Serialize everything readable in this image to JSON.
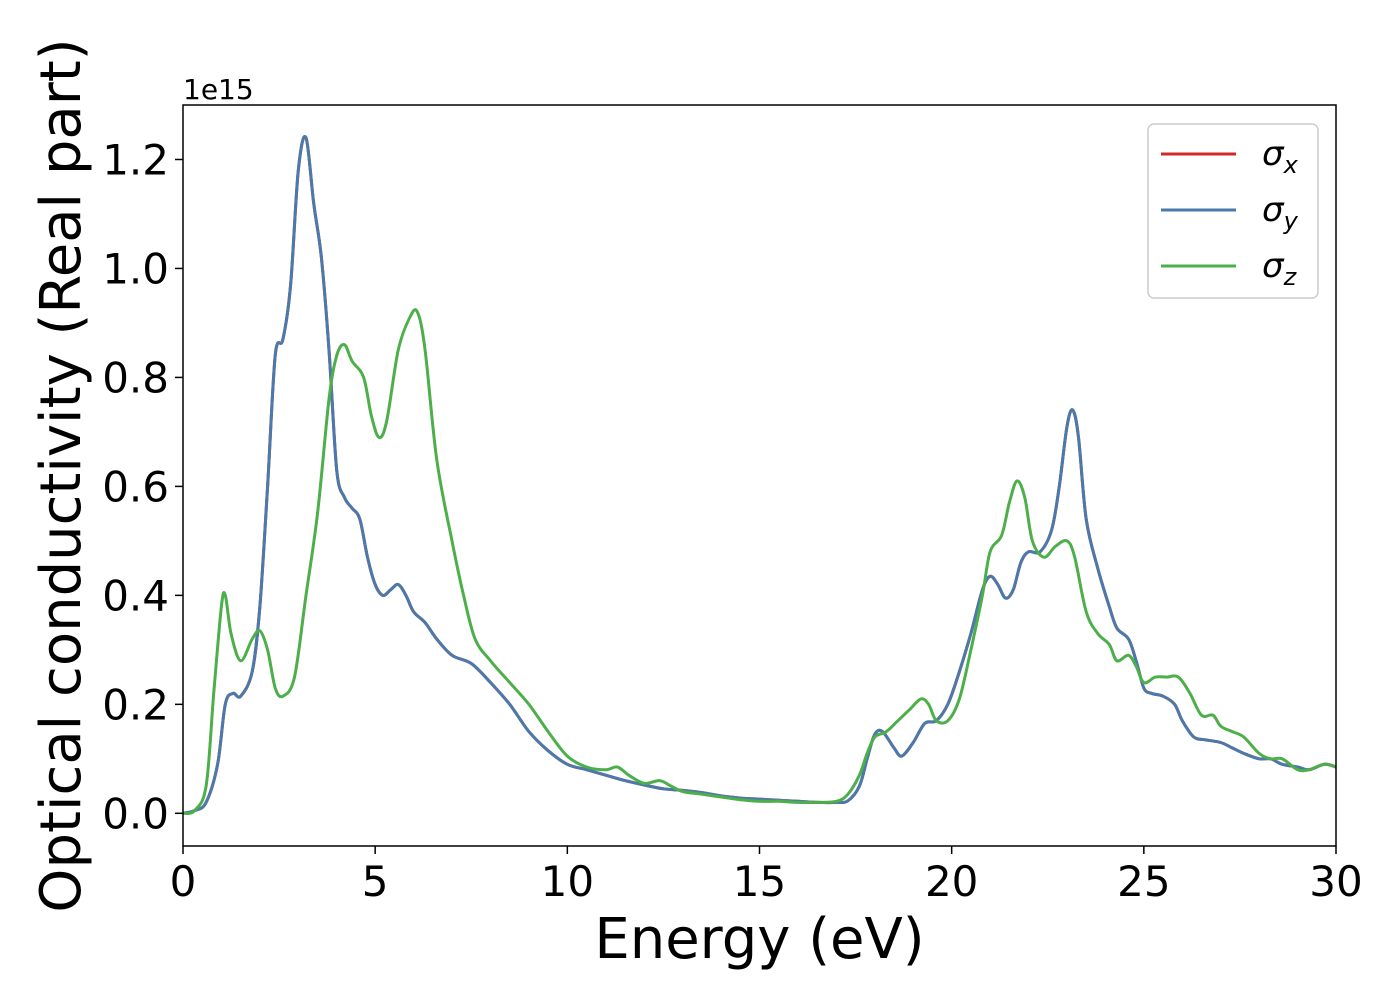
{
  "chart_data": {
    "type": "line",
    "xlabel": "Energy (eV)",
    "ylabel": "Optical conductivity (Real part)",
    "y_offset_label": "1e15",
    "xlim": [
      0,
      30
    ],
    "ylim": [
      -0.06,
      1.3
    ],
    "x_ticks": [
      0,
      5,
      10,
      15,
      20,
      25,
      30
    ],
    "x_tick_labels": [
      "0",
      "5",
      "10",
      "15",
      "20",
      "25",
      "30"
    ],
    "y_ticks": [
      0.0,
      0.2,
      0.4,
      0.6,
      0.8,
      1.0,
      1.2
    ],
    "y_tick_labels": [
      "0.0",
      "0.2",
      "0.4",
      "0.6",
      "0.8",
      "1.0",
      "1.2"
    ],
    "grid": false,
    "legend_position": "top-right",
    "series": [
      {
        "name": "σx",
        "label_base": "σ",
        "label_sub": "x",
        "color": "#d62728",
        "x": [
          0,
          0.3,
          0.6,
          0.9,
          1.1,
          1.3,
          1.5,
          1.8,
          2.0,
          2.2,
          2.4,
          2.6,
          2.8,
          3.0,
          3.2,
          3.4,
          3.6,
          3.8,
          4.0,
          4.2,
          4.4,
          4.6,
          4.8,
          5.0,
          5.2,
          5.4,
          5.6,
          5.8,
          6.0,
          6.3,
          6.6,
          7.0,
          7.5,
          8.0,
          8.5,
          9.0,
          9.5,
          10.0,
          10.5,
          11.0,
          11.5,
          12.0,
          12.5,
          13.0,
          13.5,
          14.0,
          14.5,
          15.0,
          15.5,
          16.0,
          16.5,
          17.0,
          17.3,
          17.6,
          17.8,
          18.0,
          18.2,
          18.5,
          18.7,
          19.0,
          19.3,
          19.6,
          19.9,
          20.2,
          20.5,
          20.8,
          21.0,
          21.2,
          21.4,
          21.6,
          21.8,
          22.0,
          22.3,
          22.6,
          22.8,
          23.0,
          23.15,
          23.3,
          23.5,
          23.8,
          24.1,
          24.3,
          24.6,
          24.8,
          25.0,
          25.2,
          25.5,
          25.8,
          26.0,
          26.3,
          26.6,
          27.0,
          27.3,
          27.6,
          28.0,
          28.3,
          28.6,
          29.0,
          29.3,
          29.7,
          30.0
        ],
        "values": [
          0.0,
          0.005,
          0.02,
          0.09,
          0.2,
          0.22,
          0.215,
          0.26,
          0.38,
          0.6,
          0.84,
          0.87,
          0.97,
          1.18,
          1.24,
          1.12,
          1.02,
          0.85,
          0.63,
          0.58,
          0.56,
          0.54,
          0.47,
          0.42,
          0.4,
          0.41,
          0.42,
          0.4,
          0.37,
          0.35,
          0.32,
          0.29,
          0.275,
          0.24,
          0.2,
          0.15,
          0.115,
          0.09,
          0.08,
          0.07,
          0.06,
          0.052,
          0.045,
          0.042,
          0.038,
          0.032,
          0.028,
          0.026,
          0.024,
          0.022,
          0.02,
          0.02,
          0.023,
          0.05,
          0.1,
          0.145,
          0.15,
          0.12,
          0.105,
          0.13,
          0.165,
          0.17,
          0.2,
          0.26,
          0.33,
          0.41,
          0.435,
          0.42,
          0.395,
          0.41,
          0.46,
          0.48,
          0.48,
          0.52,
          0.6,
          0.71,
          0.74,
          0.69,
          0.54,
          0.45,
          0.38,
          0.34,
          0.32,
          0.28,
          0.23,
          0.22,
          0.215,
          0.2,
          0.17,
          0.14,
          0.135,
          0.13,
          0.12,
          0.11,
          0.1,
          0.1,
          0.09,
          0.085,
          0.08,
          0.09,
          0.085
        ]
      },
      {
        "name": "σy",
        "label_base": "σ",
        "label_sub": "y",
        "color": "#4a7aab",
        "x": [
          0,
          0.3,
          0.6,
          0.9,
          1.1,
          1.3,
          1.5,
          1.8,
          2.0,
          2.2,
          2.4,
          2.6,
          2.8,
          3.0,
          3.2,
          3.4,
          3.6,
          3.8,
          4.0,
          4.2,
          4.4,
          4.6,
          4.8,
          5.0,
          5.2,
          5.4,
          5.6,
          5.8,
          6.0,
          6.3,
          6.6,
          7.0,
          7.5,
          8.0,
          8.5,
          9.0,
          9.5,
          10.0,
          10.5,
          11.0,
          11.5,
          12.0,
          12.5,
          13.0,
          13.5,
          14.0,
          14.5,
          15.0,
          15.5,
          16.0,
          16.5,
          17.0,
          17.3,
          17.6,
          17.8,
          18.0,
          18.2,
          18.5,
          18.7,
          19.0,
          19.3,
          19.6,
          19.9,
          20.2,
          20.5,
          20.8,
          21.0,
          21.2,
          21.4,
          21.6,
          21.8,
          22.0,
          22.3,
          22.6,
          22.8,
          23.0,
          23.15,
          23.3,
          23.5,
          23.8,
          24.1,
          24.3,
          24.6,
          24.8,
          25.0,
          25.2,
          25.5,
          25.8,
          26.0,
          26.3,
          26.6,
          27.0,
          27.3,
          27.6,
          28.0,
          28.3,
          28.6,
          29.0,
          29.3,
          29.7,
          30.0
        ],
        "values": [
          0.0,
          0.005,
          0.02,
          0.09,
          0.2,
          0.22,
          0.215,
          0.26,
          0.38,
          0.6,
          0.84,
          0.87,
          0.97,
          1.18,
          1.24,
          1.12,
          1.02,
          0.85,
          0.63,
          0.58,
          0.56,
          0.54,
          0.47,
          0.42,
          0.4,
          0.41,
          0.42,
          0.4,
          0.37,
          0.35,
          0.32,
          0.29,
          0.275,
          0.24,
          0.2,
          0.15,
          0.115,
          0.09,
          0.08,
          0.07,
          0.06,
          0.052,
          0.045,
          0.042,
          0.038,
          0.032,
          0.028,
          0.026,
          0.024,
          0.022,
          0.02,
          0.02,
          0.023,
          0.05,
          0.1,
          0.145,
          0.15,
          0.12,
          0.105,
          0.13,
          0.165,
          0.17,
          0.2,
          0.26,
          0.33,
          0.41,
          0.435,
          0.42,
          0.395,
          0.41,
          0.46,
          0.48,
          0.48,
          0.52,
          0.6,
          0.71,
          0.74,
          0.69,
          0.54,
          0.45,
          0.38,
          0.34,
          0.32,
          0.28,
          0.23,
          0.22,
          0.215,
          0.2,
          0.17,
          0.14,
          0.135,
          0.13,
          0.12,
          0.11,
          0.1,
          0.1,
          0.09,
          0.085,
          0.08,
          0.09,
          0.085
        ]
      },
      {
        "name": "σz",
        "label_base": "σ",
        "label_sub": "z",
        "color": "#4daf4a",
        "x": [
          0,
          0.3,
          0.6,
          0.8,
          1.0,
          1.1,
          1.25,
          1.5,
          1.8,
          2.0,
          2.2,
          2.4,
          2.6,
          2.9,
          3.2,
          3.5,
          3.8,
          4.0,
          4.2,
          4.4,
          4.7,
          4.9,
          5.1,
          5.3,
          5.6,
          5.9,
          6.1,
          6.3,
          6.6,
          7.0,
          7.3,
          7.6,
          8.0,
          8.5,
          9.0,
          9.5,
          10.0,
          10.5,
          11.0,
          11.3,
          11.6,
          12.0,
          12.4,
          12.7,
          13.0,
          13.5,
          14.0,
          14.5,
          15.0,
          15.5,
          16.0,
          16.5,
          17.0,
          17.3,
          17.6,
          17.8,
          18.0,
          18.3,
          18.6,
          18.9,
          19.2,
          19.4,
          19.6,
          19.9,
          20.2,
          20.5,
          20.8,
          21.0,
          21.3,
          21.5,
          21.7,
          21.9,
          22.1,
          22.4,
          22.7,
          23.0,
          23.2,
          23.5,
          23.8,
          24.1,
          24.3,
          24.6,
          24.8,
          25.0,
          25.3,
          25.6,
          25.9,
          26.2,
          26.5,
          26.8,
          27.0,
          27.3,
          27.6,
          28.0,
          28.3,
          28.6,
          29.0,
          29.3,
          29.7,
          30.0
        ],
        "values": [
          0.0,
          0.005,
          0.05,
          0.22,
          0.38,
          0.4,
          0.33,
          0.28,
          0.32,
          0.335,
          0.3,
          0.23,
          0.215,
          0.25,
          0.4,
          0.55,
          0.76,
          0.84,
          0.86,
          0.83,
          0.8,
          0.73,
          0.69,
          0.72,
          0.85,
          0.91,
          0.92,
          0.85,
          0.65,
          0.5,
          0.4,
          0.32,
          0.28,
          0.24,
          0.2,
          0.15,
          0.105,
          0.085,
          0.08,
          0.085,
          0.07,
          0.055,
          0.06,
          0.05,
          0.04,
          0.035,
          0.03,
          0.025,
          0.022,
          0.022,
          0.02,
          0.02,
          0.022,
          0.035,
          0.07,
          0.11,
          0.14,
          0.15,
          0.17,
          0.19,
          0.21,
          0.2,
          0.17,
          0.17,
          0.21,
          0.3,
          0.4,
          0.48,
          0.51,
          0.57,
          0.61,
          0.58,
          0.5,
          0.47,
          0.49,
          0.5,
          0.47,
          0.37,
          0.33,
          0.31,
          0.28,
          0.29,
          0.27,
          0.24,
          0.25,
          0.25,
          0.25,
          0.22,
          0.18,
          0.18,
          0.16,
          0.15,
          0.14,
          0.11,
          0.1,
          0.1,
          0.08,
          0.08,
          0.09,
          0.085
        ]
      }
    ]
  }
}
